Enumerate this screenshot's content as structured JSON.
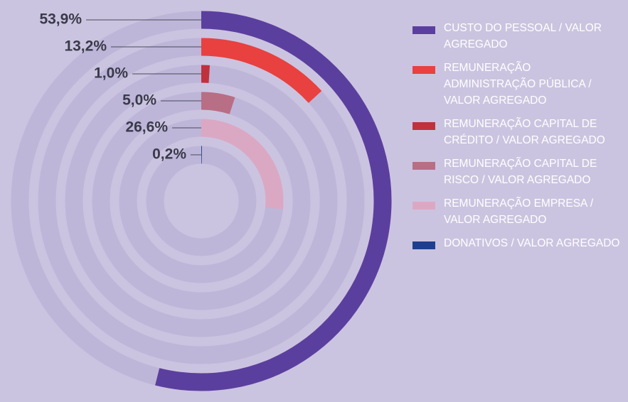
{
  "chart_data": {
    "type": "radialBar",
    "ylim": [
      0,
      100
    ],
    "series": [
      {
        "name": "CUSTO DO PESSOAL / VALOR AGREGADO",
        "color": "#5b3f9e",
        "values": [
          53.9
        ],
        "value_labels": [
          "53,9%"
        ]
      },
      {
        "name": "REMUNERAÇÃO ADMINISTRAÇÃO PÚBLICA  / VALOR AGREGADO",
        "color": "#e8413f",
        "values": [
          13.2
        ],
        "value_labels": [
          "13,2%"
        ]
      },
      {
        "name": "REMUNERAÇÃO CAPITAL DE CRÉDITO / VALOR AGREGADO",
        "color": "#c0313e",
        "values": [
          1.0
        ],
        "value_labels": [
          "1,0%"
        ]
      },
      {
        "name": "REMUNERAÇÃO CAPITAL DE RISCO / VALOR AGREGADO",
        "color": "#b86e85",
        "values": [
          5.0
        ],
        "value_labels": [
          "5,0%"
        ]
      },
      {
        "name": "REMUNERAÇÃO EMPRESA / VALOR AGREGADO",
        "color": "#dba8c3",
        "values": [
          26.6
        ],
        "value_labels": [
          "26,6%"
        ]
      },
      {
        "name": "DONATIVOS / VALOR AGREGADO",
        "color": "#1e3f8f",
        "values": [
          0.2
        ],
        "value_labels": [
          "0,2%"
        ]
      }
    ]
  }
}
